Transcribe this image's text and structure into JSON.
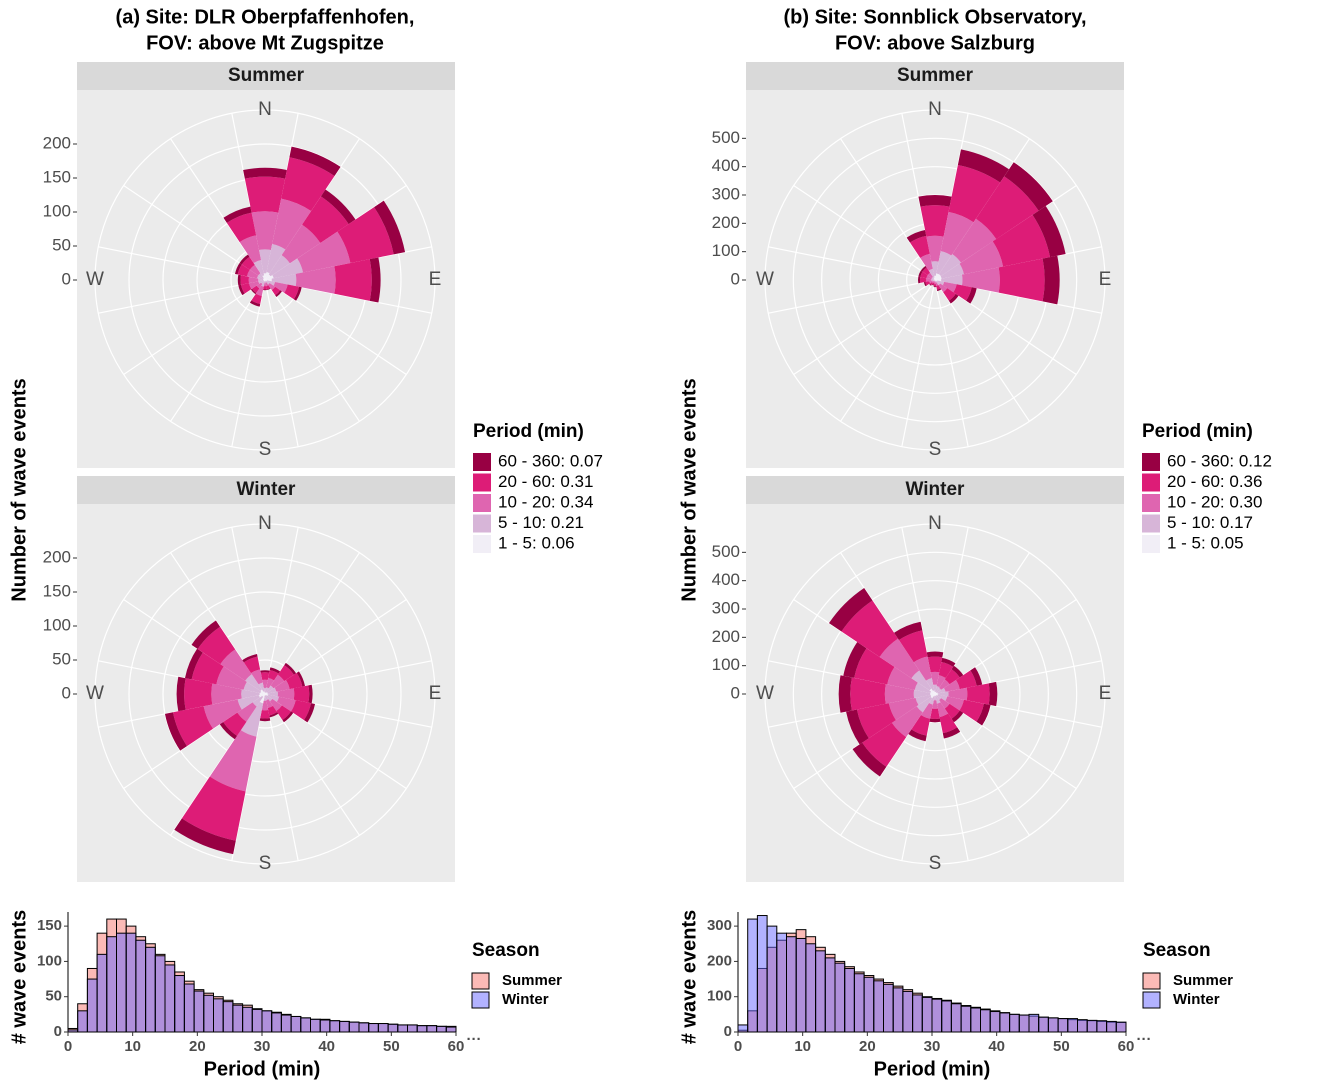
{
  "chart_data": [
    {
      "type": "rose",
      "title": [
        "(a) Site: DLR Oberpfaffenhofen,",
        "FOV: above Mt Zugspitze"
      ],
      "facet": "Summer",
      "y_label": "Number of wave events",
      "legend_title": "Period (min)",
      "compass": [
        "N",
        "E",
        "S",
        "W"
      ],
      "ylim": [
        0,
        250
      ],
      "yticks": [
        0,
        50,
        100,
        150,
        200
      ],
      "grid": true,
      "series": [
        {
          "name": "60 - 360: 0.07",
          "color": "#980043",
          "values": [
            13,
            16,
            12,
            17,
            13,
            4,
            3,
            1,
            1,
            4,
            2,
            4,
            4,
            4,
            4,
            9
          ]
        },
        {
          "name": "20 - 60: 0.31",
          "color": "#dd1c77",
          "values": [
            51,
            62,
            50,
            65,
            53,
            17,
            9,
            5,
            5,
            12,
            8,
            12,
            12,
            14,
            14,
            34
          ]
        },
        {
          "name": "10 - 20: 0.34",
          "color": "#df65b0",
          "values": [
            56,
            68,
            54,
            71,
            58,
            19,
            10,
            5,
            5,
            14,
            8,
            14,
            14,
            15,
            15,
            37
          ]
        },
        {
          "name": "5 - 10: 0.21",
          "color": "#d7b5d8",
          "values": [
            35,
            42,
            34,
            44,
            36,
            12,
            6,
            3,
            3,
            8,
            5,
            8,
            8,
            9,
            9,
            23
          ]
        },
        {
          "name": "1 - 5: 0.06",
          "color": "#f1eef6",
          "values": [
            10,
            12,
            10,
            13,
            10,
            3,
            2,
            1,
            1,
            2,
            2,
            2,
            2,
            3,
            3,
            7
          ]
        }
      ]
    },
    {
      "type": "rose",
      "facet": "Winter",
      "compass": [
        "N",
        "E",
        "S",
        "W"
      ],
      "ylim": [
        0,
        250
      ],
      "yticks": [
        0,
        50,
        100,
        150,
        200
      ],
      "grid": true,
      "series": [
        {
          "values": [
            3,
            4,
            4,
            4,
            5,
            6,
            4,
            3,
            4,
            20,
            6,
            12,
            11,
            10,
            11,
            4
          ]
        },
        {
          "values": [
            11,
            12,
            17,
            19,
            22,
            23,
            16,
            11,
            12,
            74,
            25,
            46,
            40,
            37,
            40,
            19
          ]
        },
        {
          "values": [
            12,
            14,
            19,
            20,
            24,
            25,
            17,
            12,
            14,
            82,
            27,
            51,
            44,
            41,
            44,
            20
          ]
        },
        {
          "values": [
            7,
            8,
            12,
            13,
            15,
            16,
            10,
            7,
            8,
            50,
            17,
            32,
            27,
            25,
            27,
            13
          ]
        },
        {
          "values": [
            2,
            2,
            3,
            4,
            4,
            5,
            3,
            2,
            2,
            14,
            5,
            9,
            8,
            7,
            8,
            4
          ]
        }
      ]
    },
    {
      "type": "rose",
      "title": [
        "(b) Site: Sonnblick Observatory,",
        "FOV: above Salzburg"
      ],
      "facet": "Summer",
      "y_label": "Number of wave events",
      "legend_title": "Period (min)",
      "compass": [
        "N",
        "E",
        "S",
        "W"
      ],
      "ylim": [
        0,
        600
      ],
      "yticks": [
        0,
        100,
        200,
        300,
        400,
        500
      ],
      "grid": true,
      "series": [
        {
          "name": "60 - 360: 0.12",
          "color": "#980043",
          "values": [
            36,
            56,
            60,
            56,
            53,
            18,
            12,
            5,
            3,
            3,
            3,
            5,
            7,
            7,
            7,
            21
          ]
        },
        {
          "name": "20 - 60: 0.36",
          "color": "#dd1c77",
          "values": [
            108,
            169,
            180,
            169,
            158,
            54,
            36,
            14,
            9,
            7,
            9,
            14,
            22,
            22,
            22,
            65
          ]
        },
        {
          "name": "10 - 20: 0.30",
          "color": "#df65b0",
          "values": [
            90,
            141,
            150,
            141,
            132,
            45,
            30,
            12,
            8,
            6,
            8,
            12,
            18,
            18,
            18,
            54
          ]
        },
        {
          "name": "5 - 10: 0.17",
          "color": "#d7b5d8",
          "values": [
            51,
            80,
            85,
            80,
            75,
            25,
            17,
            7,
            4,
            3,
            4,
            7,
            10,
            10,
            10,
            31
          ]
        },
        {
          "name": "1 - 5: 0.05",
          "color": "#f1eef6",
          "values": [
            15,
            24,
            25,
            24,
            22,
            8,
            5,
            2,
            1,
            1,
            1,
            2,
            3,
            3,
            3,
            9
          ]
        }
      ]
    },
    {
      "type": "rose",
      "facet": "Winter",
      "compass": [
        "N",
        "E",
        "S",
        "W"
      ],
      "ylim": [
        0,
        600
      ],
      "yticks": [
        0,
        100,
        200,
        300,
        400,
        500
      ],
      "grid": true,
      "series": [
        {
          "values": [
            18,
            15,
            15,
            20,
            27,
            24,
            15,
            19,
            12,
            20,
            41,
            39,
            41,
            39,
            53,
            31
          ]
        },
        {
          "values": [
            54,
            47,
            43,
            61,
            79,
            72,
            43,
            58,
            36,
            61,
            126,
            115,
            122,
            119,
            162,
            94
          ]
        },
        {
          "values": [
            45,
            39,
            36,
            51,
            66,
            60,
            36,
            48,
            30,
            51,
            105,
            96,
            102,
            99,
            135,
            78
          ]
        },
        {
          "values": [
            25,
            22,
            20,
            29,
            37,
            34,
            20,
            27,
            17,
            29,
            60,
            54,
            58,
            56,
            77,
            44
          ]
        },
        {
          "values": [
            8,
            7,
            6,
            9,
            11,
            10,
            6,
            8,
            5,
            9,
            18,
            16,
            17,
            17,
            23,
            13
          ]
        }
      ]
    },
    {
      "type": "histogram",
      "x_label": "Period (min)",
      "y_label": "# wave events",
      "legend_title": "Season",
      "overflow_mark": "···",
      "xlim": [
        0,
        60
      ],
      "xticks": [
        0,
        10,
        20,
        30,
        40,
        50,
        60
      ],
      "ylim": [
        0,
        170
      ],
      "yticks": [
        0,
        50,
        100,
        150
      ],
      "bins": [
        0,
        1.5,
        3,
        4.5,
        6,
        7.5,
        9,
        10.5,
        12,
        13.5,
        15,
        16.5,
        18,
        19.5,
        21,
        22.5,
        24,
        25.5,
        27,
        28.5,
        30,
        31.5,
        33,
        34.5,
        36,
        37.5,
        39,
        40.5,
        42,
        43.5,
        45,
        46.5,
        48,
        49.5,
        51,
        52.5,
        54,
        55.5,
        57,
        58.5,
        60
      ],
      "series": [
        {
          "name": "Summer",
          "color": "#f8766d",
          "values": [
            5,
            40,
            90,
            140,
            160,
            160,
            150,
            135,
            125,
            110,
            100,
            85,
            72,
            60,
            55,
            50,
            45,
            40,
            38,
            33,
            30,
            28,
            25,
            22,
            20,
            18,
            18,
            16,
            15,
            14,
            13,
            12,
            12,
            11,
            10,
            10,
            9,
            9,
            8,
            8
          ]
        },
        {
          "name": "Winter",
          "color": "#6666ff",
          "values": [
            3,
            30,
            75,
            110,
            135,
            140,
            140,
            130,
            120,
            108,
            95,
            80,
            68,
            58,
            52,
            47,
            43,
            38,
            35,
            32,
            30,
            27,
            24,
            22,
            20,
            18,
            17,
            16,
            15,
            14,
            13,
            12,
            12,
            11,
            10,
            10,
            9,
            9,
            8,
            7
          ]
        }
      ]
    },
    {
      "type": "histogram",
      "x_label": "Period (min)",
      "y_label": "# wave events",
      "legend_title": "Season",
      "overflow_mark": "···",
      "xlim": [
        0,
        60
      ],
      "xticks": [
        0,
        10,
        20,
        30,
        40,
        50,
        60
      ],
      "ylim": [
        0,
        340
      ],
      "yticks": [
        0,
        100,
        200,
        300
      ],
      "bins": [
        0,
        1.5,
        3,
        4.5,
        6,
        7.5,
        9,
        10.5,
        12,
        13.5,
        15,
        16.5,
        18,
        19.5,
        21,
        22.5,
        24,
        25.5,
        27,
        28.5,
        30,
        31.5,
        33,
        34.5,
        36,
        37.5,
        39,
        40.5,
        42,
        43.5,
        45,
        46.5,
        48,
        49.5,
        51,
        52.5,
        54,
        55.5,
        57,
        58.5,
        60
      ],
      "series": [
        {
          "name": "Summer",
          "color": "#f8766d",
          "values": [
            5,
            60,
            180,
            240,
            260,
            280,
            290,
            270,
            240,
            220,
            200,
            185,
            170,
            160,
            150,
            140,
            130,
            120,
            110,
            100,
            95,
            90,
            82,
            75,
            70,
            65,
            60,
            55,
            50,
            48,
            45,
            42,
            40,
            38,
            35,
            33,
            32,
            30,
            28,
            27
          ]
        },
        {
          "name": "Winter",
          "color": "#6666ff",
          "values": [
            20,
            320,
            330,
            300,
            280,
            270,
            265,
            250,
            230,
            210,
            195,
            180,
            165,
            155,
            145,
            135,
            125,
            115,
            105,
            98,
            93,
            88,
            80,
            73,
            68,
            63,
            58,
            54,
            50,
            48,
            50,
            42,
            40,
            38,
            38,
            35,
            33,
            32,
            30,
            28
          ]
        }
      ]
    }
  ]
}
